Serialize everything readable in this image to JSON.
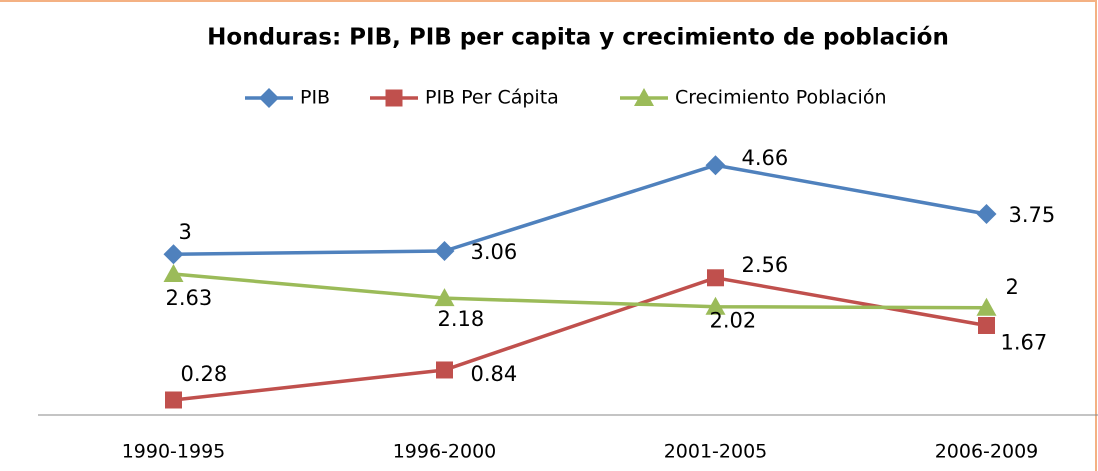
{
  "chart_data": {
    "type": "line",
    "title": "Honduras: PIB, PIB per capita y crecimiento de población",
    "categories": [
      "1990-1995",
      "1996-2000",
      "2001-2005",
      "2006-2009"
    ],
    "series": [
      {
        "name": "PIB",
        "color": "#4f81bd",
        "marker": "diamond",
        "values": [
          3,
          3.06,
          4.66,
          3.75
        ]
      },
      {
        "name": "PIB Per Cápita",
        "color": "#c0504d",
        "marker": "square",
        "values": [
          0.28,
          0.84,
          2.56,
          1.67
        ]
      },
      {
        "name": "Crecimiento Población",
        "color": "#9bbb59",
        "marker": "triangle",
        "values": [
          2.63,
          2.18,
          2.02,
          2
        ]
      }
    ],
    "ylim": [
      0,
      5
    ],
    "grid": false,
    "legend": "top"
  }
}
